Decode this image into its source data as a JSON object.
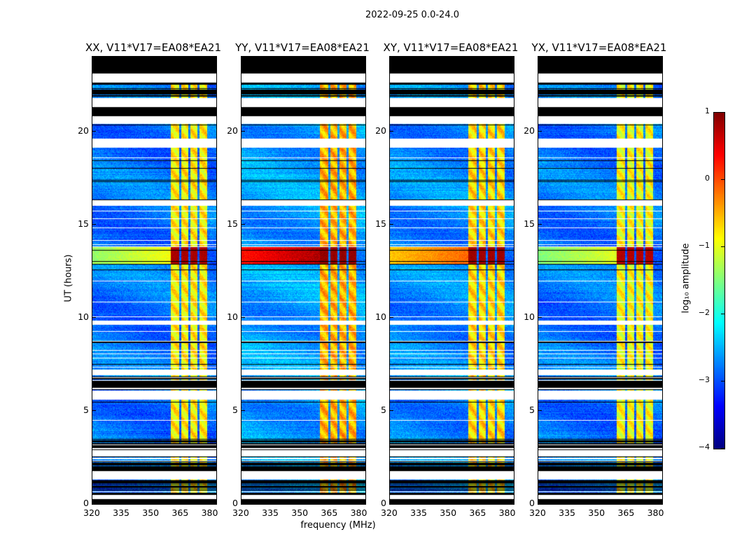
{
  "chart_data": {
    "type": "heatmap",
    "suptitle": "2022-09-25 0.0-24.0",
    "xlabel": "frequency (MHz)",
    "ylabel": "UT (hours)",
    "xlim": [
      320,
      383
    ],
    "ylim": [
      0,
      24
    ],
    "xticks": [
      320,
      335,
      350,
      365,
      380
    ],
    "yticks": [
      0,
      5,
      10,
      15,
      20
    ],
    "colorbar": {
      "label": "log₁₀ amplitude",
      "range": [
        -4,
        1
      ],
      "ticks": [
        -4,
        -3,
        -2,
        -1,
        0,
        1
      ],
      "tick_labels": [
        "−4",
        "−3",
        "−2",
        "−1",
        "0",
        "1"
      ],
      "colormap": "jet"
    },
    "panels": [
      {
        "title": "XX, V11*V17=EA08*EA21",
        "background_log_amp": -2.8,
        "rfi_log_amp": -0.8,
        "event_log_amp": 0.8,
        "event_lowfreq_log_amp": -1.4
      },
      {
        "title": "YY, V11*V17=EA08*EA21",
        "background_log_amp": -2.6,
        "rfi_log_amp": -0.5,
        "event_log_amp": 0.9,
        "event_lowfreq_log_amp": 0.3
      },
      {
        "title": "XY, V11*V17=EA08*EA21",
        "background_log_amp": -2.7,
        "rfi_log_amp": -0.7,
        "event_log_amp": 0.85,
        "event_lowfreq_log_amp": -0.6
      },
      {
        "title": "YX, V11*V17=EA08*EA21",
        "background_log_amp": -2.8,
        "rfi_log_amp": -0.9,
        "event_log_amp": 0.75,
        "event_lowfreq_log_amp": -1.5
      }
    ],
    "rfi_band_mhz": [
      360,
      378.5
    ],
    "rfi_gap_channels_mhz": [
      364.6,
      369.2,
      373.8
    ],
    "event_hours": [
      12.9,
      13.8
    ],
    "time_segments": [
      [
        0,
        0.25,
        "zero"
      ],
      [
        0.25,
        0.5,
        "flagged"
      ],
      [
        0.5,
        1.3,
        "striped"
      ],
      [
        1.3,
        1.75,
        "flagged"
      ],
      [
        1.75,
        2.6,
        "striped"
      ],
      [
        2.6,
        2.9,
        "flagged"
      ],
      [
        2.9,
        3.5,
        "striped"
      ],
      [
        3.5,
        5.6,
        "data"
      ],
      [
        5.6,
        6.1,
        "flagged"
      ],
      [
        6.1,
        6.9,
        "striped"
      ],
      [
        6.9,
        7.2,
        "flagged"
      ],
      [
        7.2,
        9.6,
        "data"
      ],
      [
        9.6,
        9.85,
        "flagged"
      ],
      [
        9.85,
        16.0,
        "data"
      ],
      [
        16.0,
        16.3,
        "flagged"
      ],
      [
        16.3,
        19.1,
        "data"
      ],
      [
        19.1,
        19.6,
        "flagged"
      ],
      [
        19.6,
        20.4,
        "data"
      ],
      [
        20.4,
        20.8,
        "flagged"
      ],
      [
        20.8,
        21.3,
        "zero"
      ],
      [
        21.3,
        21.8,
        "flagged"
      ],
      [
        21.8,
        22.6,
        "striped"
      ],
      [
        22.6,
        23.1,
        "flagged"
      ],
      [
        23.1,
        24,
        "zero"
      ]
    ]
  }
}
